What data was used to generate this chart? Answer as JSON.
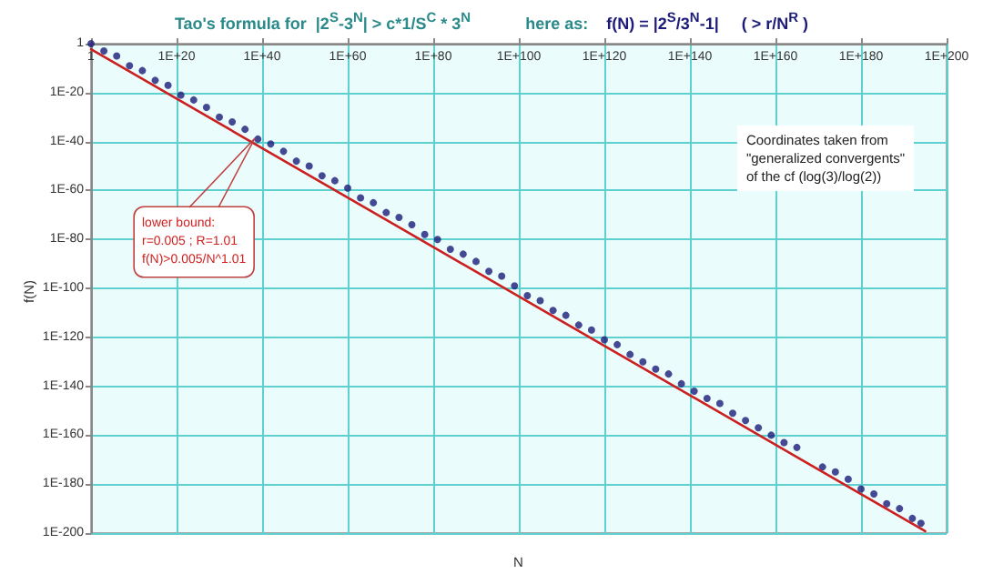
{
  "chart_data": {
    "type": "scatter",
    "title": "Tao's formula for  |2$^{S}$-3$^{N}$| > c*1/S$^{C}$ * 3$^{N}$            here as:",
    "subtitle": "f(N) = |2$^{S}$/3$^{N}$-1|     ( > r/N$^{R}$ )",
    "xlabel": "N",
    "ylabel": "f(N)",
    "annotations": [
      "lower bound:\nr=0.005 ; R=1.01\nf(N)>0.005/N^1.01",
      "Coordinates taken from\n\"generalized convergents\"\nof the cf (log(3)/log(2))"
    ],
    "series": [
      {
        "color": "#1c1c78",
        "x": [
          1,
          1000.0,
          1000000.0,
          1000000000.0,
          1000000000000.0,
          1000000000000000.0,
          1e+18,
          1e+21,
          1e+24,
          1e+27,
          1e+30,
          1e+33,
          1e+36,
          1e+39,
          1e+42,
          1e+45,
          1e+48,
          1e+51,
          1e+54,
          1e+57,
          1e+60,
          1e+63,
          1e+66,
          1e+69,
          1e+72,
          1e+75,
          1e+78,
          1e+81,
          1e+84,
          1e+87,
          1e+90,
          1e+93,
          1e+96,
          1e+99,
          1e+102,
          1e+105,
          1e+108,
          1e+111,
          1e+114,
          1e+117,
          1e+120,
          1e+123,
          1e+126,
          1e+129,
          1e+132,
          1e+135,
          1e+138,
          1e+141,
          1e+144,
          1e+147,
          1e+150,
          1e+153,
          1e+156,
          1e+159,
          1e+162,
          1e+165,
          1e+171,
          1e+174,
          1e+177,
          1e+180,
          1e+183,
          1e+186,
          1e+189,
          1e+192,
          1e+194
        ],
        "values": [
          1,
          0.001,
          1e-05,
          1e-09,
          1e-11,
          1e-15,
          1e-17,
          1e-21,
          1e-23,
          1e-26,
          1e-30,
          1e-32,
          1e-35,
          1e-39,
          1e-41,
          1e-44,
          1e-48,
          1e-50,
          1e-54,
          1e-56,
          1e-59,
          1e-63,
          1e-65,
          1e-69,
          1e-71,
          1e-74,
          1e-78,
          1e-80,
          1e-84,
          1e-86,
          1e-89,
          1e-93,
          1e-95,
          1e-99,
          1e-103,
          1e-105,
          1e-109,
          1e-111,
          1e-115,
          1e-117,
          1e-121,
          1e-123,
          1e-127,
          1e-130,
          1e-133,
          1e-135,
          1e-139,
          1e-142,
          1e-145,
          1e-147,
          1e-151,
          1e-154,
          1e-157,
          1e-160,
          1e-163,
          1e-165,
          1e-173,
          1e-175,
          1e-178,
          1e-182,
          1e-184,
          1e-188,
          1e-190,
          1e-194,
          1e-196
        ]
      },
      {
        "type": "line",
        "color": "#cc2020",
        "x": [
          1,
          1e+195
        ],
        "values": [
          0.005,
          5.6e-200
        ]
      }
    ],
    "log": "xy",
    "xlim": [
      1,
      1e+200
    ],
    "ylim": [
      1e-200,
      1
    ],
    "xticks": [
      1,
      {
        "value": 1e+20,
        "label": "1E+20"
      },
      {
        "value": 1e+40,
        "label": "1E+40"
      },
      {
        "value": 1e+60,
        "label": "1E+60"
      },
      {
        "value": 1e+80,
        "label": "1E+80"
      },
      {
        "value": 1e+100,
        "label": "1E+100"
      },
      {
        "value": 1e+120,
        "label": "1E+120"
      },
      {
        "value": 1e+140,
        "label": "1E+140"
      },
      {
        "value": 1e+160,
        "label": "1E+160"
      },
      {
        "value": 1e+180,
        "label": "1E+180"
      },
      {
        "value": 1e+200,
        "label": "1E+200"
      }
    ],
    "yticks": [
      1,
      {
        "value": 1e-20,
        "label": "1E-20"
      },
      {
        "value": 1e-40,
        "label": "1E-40"
      },
      {
        "value": 1e-60,
        "label": "1E-60"
      },
      {
        "value": 1e-80,
        "label": "1E-80"
      },
      {
        "value": 1e-100,
        "label": "1E-100"
      },
      {
        "value": 1e-120,
        "label": "1E-120"
      },
      {
        "value": 1e-140,
        "label": "1E-140"
      },
      {
        "value": 1e-160,
        "label": "1E-160"
      },
      {
        "value": 1e-180,
        "label": "1E-180"
      },
      {
        "value": 1e-200,
        "label": "1E-200"
      }
    ],
    "grid": true,
    "line_style": "solid"
  }
}
